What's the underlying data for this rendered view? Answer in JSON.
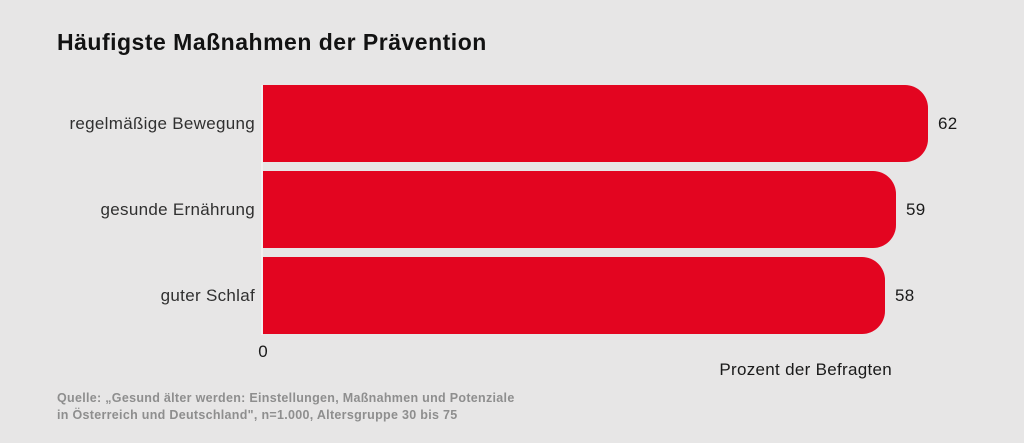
{
  "title": "Häufigste Maßnahmen der Prävention",
  "chart_data": {
    "type": "bar",
    "orientation": "horizontal",
    "title": "Häufigste Maßnahmen der Prävention",
    "categories": [
      "regelmäßige Bewegung",
      "gesunde Ernährung",
      "guter Schlaf"
    ],
    "values": [
      62,
      59,
      58
    ],
    "xlabel": "Prozent der Befragten",
    "ylabel": "",
    "xlim": [
      0,
      70
    ],
    "origin_tick_label": "0",
    "grid": false,
    "legend": false,
    "bar_color": "#e30520"
  },
  "axis": {
    "origin_label": "0",
    "x_axis_label": "Prozent der Befragten"
  },
  "source_note": {
    "line1": "Quelle: „Gesund älter werden: Einstellungen, Maßnahmen und Potenziale",
    "line2": "in Österreich und Deutschland\", n=1.000, Altersgruppe 30 bis 75"
  },
  "colors": {
    "background": "#e7e6e6",
    "bar": "#e30520",
    "title_text": "#121212",
    "category_text": "#303030",
    "value_text": "#1a1a1a",
    "source_text": "#8e8e8e"
  }
}
